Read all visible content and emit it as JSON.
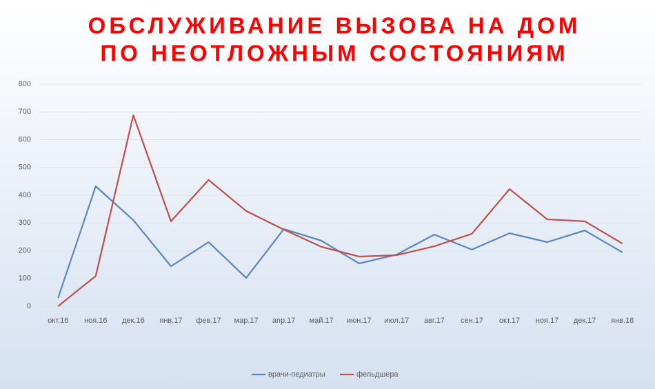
{
  "chart_data": {
    "type": "line",
    "title": [
      "ОБСЛУЖИВАНИЕ ВЫЗОВА НА ДОМ",
      "ПО НЕОТЛОЖНЫМ СОСТОЯНИЯМ"
    ],
    "categories": [
      "окт.16",
      "ноя.16",
      "дек.16",
      "янв.17",
      "фев.17",
      "мар.17",
      "апр.17",
      "май.17",
      "июн.17",
      "июл.17",
      "авг.17",
      "сен.17",
      "окт.17",
      "ноя.17",
      "дек.17",
      "янв.18"
    ],
    "series": [
      {
        "name": "врачи-педиатры",
        "color": "#5b87c0",
        "values": [
          30,
          432,
          310,
          144,
          231,
          102,
          278,
          236,
          154,
          186,
          258,
          204,
          263,
          231,
          273,
          194
        ]
      },
      {
        "name": "фельдшера",
        "color": "#c0504d",
        "values": [
          0,
          109,
          688,
          306,
          455,
          343,
          276,
          214,
          179,
          184,
          216,
          261,
          422,
          313,
          306,
          226
        ]
      }
    ],
    "ylim": [
      0,
      800
    ],
    "yticks": [
      0,
      100,
      200,
      300,
      400,
      500,
      600,
      700,
      800
    ],
    "grid": true,
    "legend": "bottom"
  }
}
